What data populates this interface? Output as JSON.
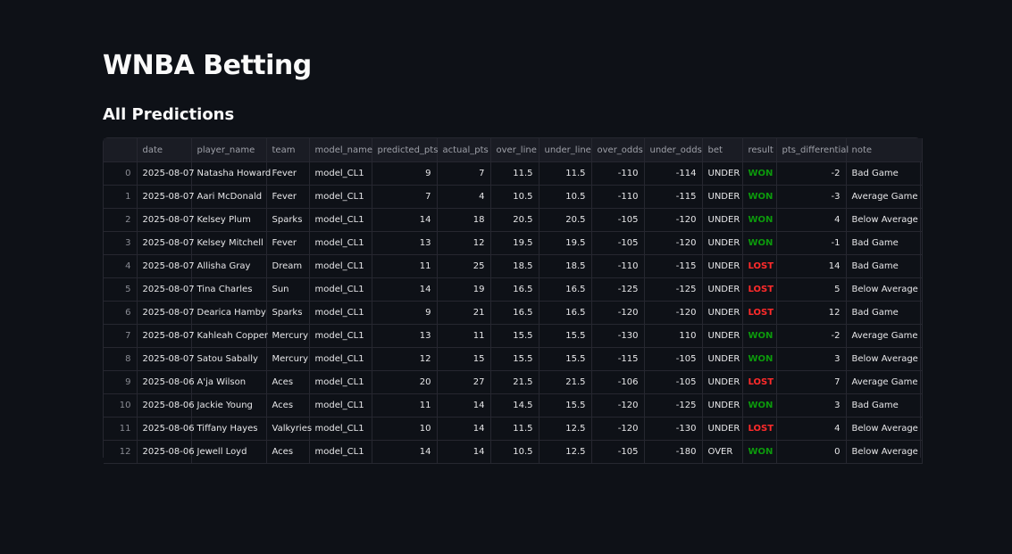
{
  "title": "WNBA Betting",
  "subtitle": "All Predictions",
  "colors": {
    "won": "#0c9a0c",
    "lost": "#ff2b2b",
    "background": "#0e1117"
  },
  "columns": [
    "",
    "date",
    "player_name",
    "team",
    "model_name",
    "predicted_pts",
    "actual_pts",
    "over_line",
    "under_line",
    "over_odds",
    "under_odds",
    "bet",
    "result",
    "pts_differential",
    "note"
  ],
  "rows": [
    [
      "0",
      "2025-08-07",
      "Natasha Howard",
      "Fever",
      "model_CL1",
      "9",
      "7",
      "11.5",
      "11.5",
      "-110",
      "-114",
      "UNDER",
      "WON",
      "-2",
      "Bad Game"
    ],
    [
      "1",
      "2025-08-07",
      "Aari McDonald",
      "Fever",
      "model_CL1",
      "7",
      "4",
      "10.5",
      "10.5",
      "-110",
      "-115",
      "UNDER",
      "WON",
      "-3",
      "Average Game"
    ],
    [
      "2",
      "2025-08-07",
      "Kelsey Plum",
      "Sparks",
      "model_CL1",
      "14",
      "18",
      "20.5",
      "20.5",
      "-105",
      "-120",
      "UNDER",
      "WON",
      "4",
      "Below Average"
    ],
    [
      "3",
      "2025-08-07",
      "Kelsey Mitchell",
      "Fever",
      "model_CL1",
      "13",
      "12",
      "19.5",
      "19.5",
      "-105",
      "-120",
      "UNDER",
      "WON",
      "-1",
      "Bad Game"
    ],
    [
      "4",
      "2025-08-07",
      "Allisha Gray",
      "Dream",
      "model_CL1",
      "11",
      "25",
      "18.5",
      "18.5",
      "-110",
      "-115",
      "UNDER",
      "LOST",
      "14",
      "Bad Game"
    ],
    [
      "5",
      "2025-08-07",
      "Tina Charles",
      "Sun",
      "model_CL1",
      "14",
      "19",
      "16.5",
      "16.5",
      "-125",
      "-125",
      "UNDER",
      "LOST",
      "5",
      "Below Average"
    ],
    [
      "6",
      "2025-08-07",
      "Dearica Hamby",
      "Sparks",
      "model_CL1",
      "9",
      "21",
      "16.5",
      "16.5",
      "-120",
      "-120",
      "UNDER",
      "LOST",
      "12",
      "Bad Game"
    ],
    [
      "7",
      "2025-08-07",
      "Kahleah Copper",
      "Mercury",
      "model_CL1",
      "13",
      "11",
      "15.5",
      "15.5",
      "-130",
      "110",
      "UNDER",
      "WON",
      "-2",
      "Average Game"
    ],
    [
      "8",
      "2025-08-07",
      "Satou Sabally",
      "Mercury",
      "model_CL1",
      "12",
      "15",
      "15.5",
      "15.5",
      "-115",
      "-105",
      "UNDER",
      "WON",
      "3",
      "Below Average"
    ],
    [
      "9",
      "2025-08-06",
      "A'ja Wilson",
      "Aces",
      "model_CL1",
      "20",
      "27",
      "21.5",
      "21.5",
      "-106",
      "-105",
      "UNDER",
      "LOST",
      "7",
      "Average Game"
    ],
    [
      "10",
      "2025-08-06",
      "Jackie Young",
      "Aces",
      "model_CL1",
      "11",
      "14",
      "14.5",
      "15.5",
      "-120",
      "-125",
      "UNDER",
      "WON",
      "3",
      "Bad Game"
    ],
    [
      "11",
      "2025-08-06",
      "Tiffany Hayes",
      "Valkyries",
      "model_CL1",
      "10",
      "14",
      "11.5",
      "12.5",
      "-120",
      "-130",
      "UNDER",
      "LOST",
      "4",
      "Below Average"
    ],
    [
      "12",
      "2025-08-06",
      "Jewell Loyd",
      "Aces",
      "model_CL1",
      "14",
      "14",
      "10.5",
      "12.5",
      "-105",
      "-180",
      "OVER",
      "WON",
      "0",
      "Below Average"
    ]
  ]
}
